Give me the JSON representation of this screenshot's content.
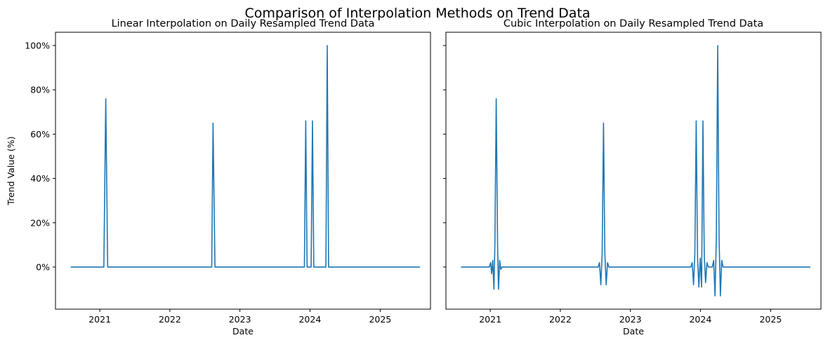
{
  "suptitle": "Comparison of Interpolation Methods on Trend Data",
  "colors": {
    "series": "#1f77b4",
    "axes": "#000000",
    "background": "#ffffff"
  },
  "chart_data": [
    {
      "type": "line",
      "title": "Linear Interpolation on Daily Resampled Trend Data",
      "xlabel": "Date",
      "ylabel": "Trend Value (%)",
      "x_ticks": [
        "2021",
        "2022",
        "2023",
        "2024",
        "2025"
      ],
      "y_ticks": [
        "0%",
        "20%",
        "40%",
        "60%",
        "80%",
        "100%"
      ],
      "xlim": [
        "2020-05-15",
        "2025-09-20"
      ],
      "ylim": [
        -19,
        106
      ],
      "grid": false,
      "legend": "none",
      "series": [
        {
          "points": [
            [
              "2020-08-02",
              0
            ],
            [
              "2021-01-22",
              0
            ],
            [
              "2021-02-01",
              76
            ],
            [
              "2021-02-11",
              0
            ],
            [
              "2022-08-07",
              0
            ],
            [
              "2022-08-14",
              65
            ],
            [
              "2022-08-24",
              0
            ],
            [
              "2023-12-03",
              0
            ],
            [
              "2023-12-10",
              66
            ],
            [
              "2023-12-17",
              0
            ],
            [
              "2024-01-07",
              0
            ],
            [
              "2024-01-14",
              66
            ],
            [
              "2024-01-21",
              0
            ],
            [
              "2024-03-24",
              0
            ],
            [
              "2024-03-31",
              100
            ],
            [
              "2024-04-07",
              0
            ],
            [
              "2025-07-27",
              0
            ]
          ]
        }
      ]
    },
    {
      "type": "line",
      "title": "Cubic Interpolation on Daily Resampled Trend Data",
      "xlabel": "Date",
      "ylabel": "",
      "x_ticks": [
        "2021",
        "2022",
        "2023",
        "2024",
        "2025"
      ],
      "y_ticks": [
        "0%",
        "20%",
        "40%",
        "60%",
        "80%",
        "100%"
      ],
      "xlim": [
        "2020-05-15",
        "2025-09-20"
      ],
      "ylim": [
        -19,
        106
      ],
      "grid": false,
      "legend": "none",
      "series": [
        {
          "points": [
            [
              "2020-08-02",
              0
            ],
            [
              "2020-12-27",
              0
            ],
            [
              "2021-01-03",
              2
            ],
            [
              "2021-01-08",
              -3
            ],
            [
              "2021-01-14",
              3
            ],
            [
              "2021-01-20",
              -10
            ],
            [
              "2021-01-25",
              10
            ],
            [
              "2021-02-01",
              76
            ],
            [
              "2021-02-08",
              10
            ],
            [
              "2021-02-13",
              -10
            ],
            [
              "2021-02-19",
              3
            ],
            [
              "2021-02-25",
              -1
            ],
            [
              "2021-03-03",
              0
            ],
            [
              "2022-07-17",
              0
            ],
            [
              "2022-07-24",
              2
            ],
            [
              "2022-07-31",
              -8
            ],
            [
              "2022-08-07",
              6
            ],
            [
              "2022-08-14",
              65
            ],
            [
              "2022-08-21",
              6
            ],
            [
              "2022-08-28",
              -8
            ],
            [
              "2022-09-04",
              2
            ],
            [
              "2022-09-11",
              0
            ],
            [
              "2023-11-12",
              0
            ],
            [
              "2023-11-19",
              2
            ],
            [
              "2023-11-26",
              -8
            ],
            [
              "2023-12-03",
              6
            ],
            [
              "2023-12-10",
              66
            ],
            [
              "2023-12-17",
              4
            ],
            [
              "2023-12-24",
              -9
            ],
            [
              "2023-12-31",
              4
            ],
            [
              "2024-01-07",
              -9
            ],
            [
              "2024-01-14",
              66
            ],
            [
              "2024-01-21",
              5
            ],
            [
              "2024-01-28",
              -7
            ],
            [
              "2024-02-04",
              2
            ],
            [
              "2024-02-11",
              0
            ],
            [
              "2024-03-03",
              0
            ],
            [
              "2024-03-10",
              3
            ],
            [
              "2024-03-17",
              -13
            ],
            [
              "2024-03-24",
              14
            ],
            [
              "2024-03-31",
              100
            ],
            [
              "2024-04-07",
              14
            ],
            [
              "2024-04-14",
              -13
            ],
            [
              "2024-04-21",
              3
            ],
            [
              "2024-04-28",
              0
            ],
            [
              "2025-07-27",
              0
            ]
          ]
        }
      ]
    }
  ]
}
